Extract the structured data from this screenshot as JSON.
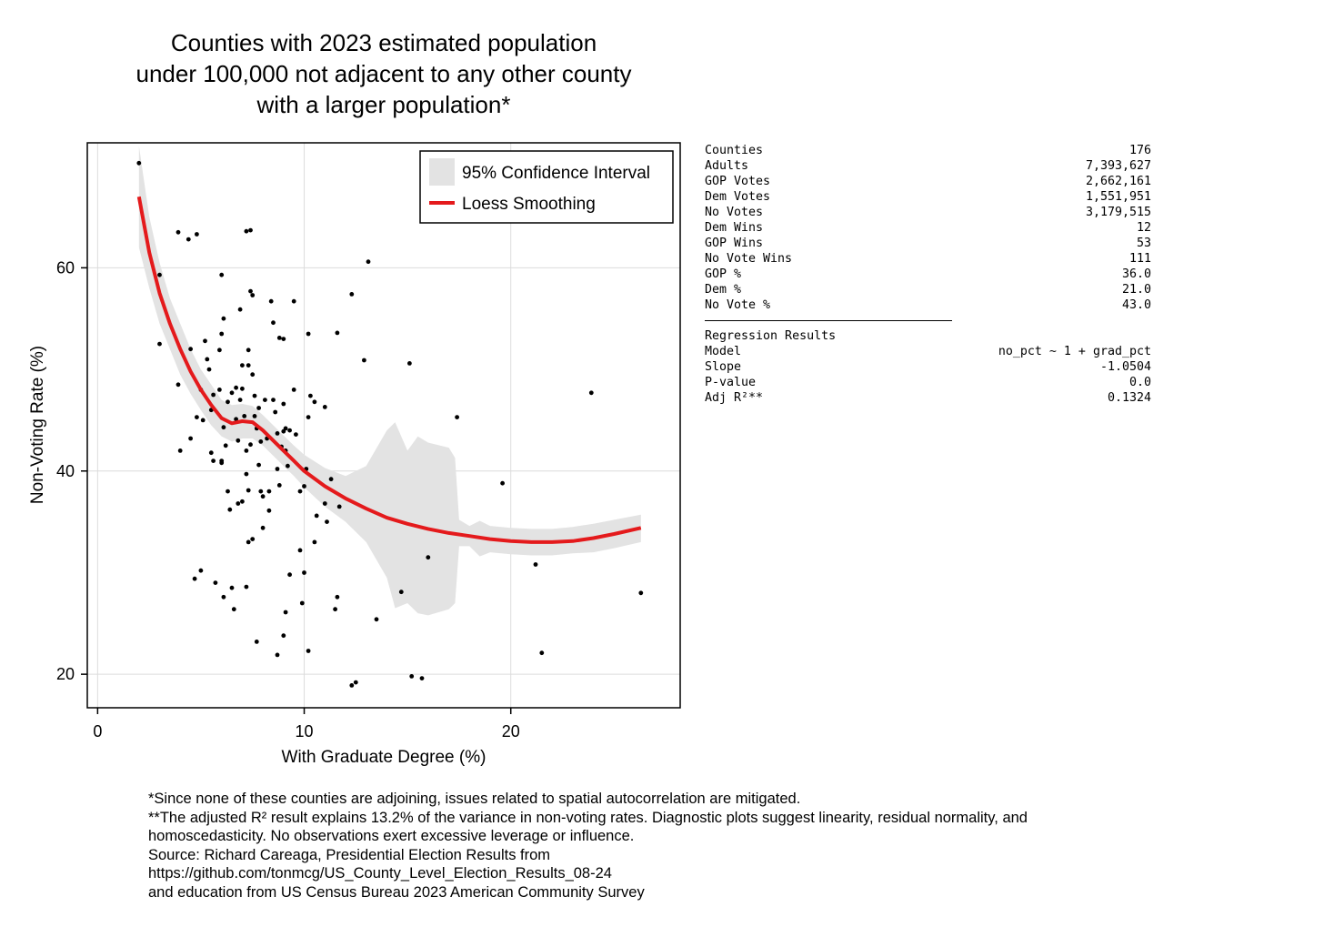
{
  "chart_data": {
    "type": "scatter",
    "title_lines": [
      "Counties with 2023 estimated population",
      "under 100,000 not adjacent to any other county",
      "with a larger population*"
    ],
    "xlabel": "With Graduate Degree (%)",
    "ylabel": "Non-Voting Rate (%)",
    "xlim": [
      -0.5,
      28.2
    ],
    "ylim": [
      16.7,
      72.3
    ],
    "xticks": [
      0,
      10,
      20
    ],
    "yticks": [
      20,
      40,
      60
    ],
    "grid": true,
    "legend_position": "top-right",
    "legend": [
      {
        "label": "95% Confidence Interval",
        "kind": "band",
        "color": "#e3e3e3"
      },
      {
        "label": "Loess Smoothing",
        "kind": "line",
        "color": "#e41a1c"
      }
    ],
    "points": [
      [
        2.0,
        70.3
      ],
      [
        3.0,
        59.3
      ],
      [
        3.0,
        52.5
      ],
      [
        3.9,
        48.5
      ],
      [
        4.0,
        42.0
      ],
      [
        3.9,
        63.5
      ],
      [
        4.4,
        62.8
      ],
      [
        4.8,
        63.3
      ],
      [
        4.5,
        52.0
      ],
      [
        4.5,
        43.2
      ],
      [
        4.8,
        45.3
      ],
      [
        4.7,
        29.4
      ],
      [
        5.0,
        30.2
      ],
      [
        5.1,
        45.0
      ],
      [
        5.2,
        52.8
      ],
      [
        5.3,
        51.0
      ],
      [
        5.4,
        50.0
      ],
      [
        5.5,
        46.0
      ],
      [
        5.5,
        41.8
      ],
      [
        5.6,
        47.5
      ],
      [
        5.6,
        41.0
      ],
      [
        5.7,
        29.0
      ],
      [
        5.9,
        48.0
      ],
      [
        6.0,
        59.3
      ],
      [
        6.1,
        55.0
      ],
      [
        6.0,
        53.5
      ],
      [
        6.1,
        44.3
      ],
      [
        6.2,
        42.5
      ],
      [
        6.0,
        40.8
      ],
      [
        6.3,
        38.0
      ],
      [
        6.4,
        36.2
      ],
      [
        6.5,
        28.5
      ],
      [
        6.6,
        26.4
      ],
      [
        6.1,
        27.6
      ],
      [
        6.3,
        46.8
      ],
      [
        6.5,
        47.7
      ],
      [
        6.7,
        48.2
      ],
      [
        6.7,
        45.1
      ],
      [
        6.8,
        43.0
      ],
      [
        6.9,
        55.9
      ],
      [
        7.0,
        50.4
      ],
      [
        7.0,
        48.1
      ],
      [
        7.1,
        45.4
      ],
      [
        7.2,
        42.0
      ],
      [
        7.2,
        39.7
      ],
      [
        7.3,
        38.1
      ],
      [
        7.3,
        33.0
      ],
      [
        7.2,
        28.6
      ],
      [
        7.2,
        63.6
      ],
      [
        7.4,
        63.7
      ],
      [
        7.4,
        57.7
      ],
      [
        7.5,
        57.3
      ],
      [
        7.3,
        51.9
      ],
      [
        7.3,
        50.4
      ],
      [
        7.5,
        49.5
      ],
      [
        7.6,
        47.4
      ],
      [
        7.6,
        45.4
      ],
      [
        7.7,
        44.2
      ],
      [
        7.8,
        40.6
      ],
      [
        7.9,
        38.0
      ],
      [
        8.0,
        37.5
      ],
      [
        7.7,
        23.2
      ],
      [
        8.0,
        34.4
      ],
      [
        8.1,
        47.0
      ],
      [
        8.2,
        43.2
      ],
      [
        8.3,
        38.0
      ],
      [
        8.4,
        56.7
      ],
      [
        8.5,
        54.6
      ],
      [
        8.5,
        47.0
      ],
      [
        8.6,
        45.8
      ],
      [
        8.7,
        43.7
      ],
      [
        8.7,
        40.2
      ],
      [
        8.8,
        38.6
      ],
      [
        8.8,
        53.1
      ],
      [
        9.0,
        53.0
      ],
      [
        9.0,
        46.6
      ],
      [
        9.1,
        44.2
      ],
      [
        9.1,
        42.0
      ],
      [
        9.2,
        40.5
      ],
      [
        9.1,
        26.1
      ],
      [
        9.0,
        23.8
      ],
      [
        8.7,
        21.9
      ],
      [
        9.3,
        29.8
      ],
      [
        9.3,
        44.0
      ],
      [
        9.5,
        56.7
      ],
      [
        9.5,
        48.0
      ],
      [
        9.6,
        43.6
      ],
      [
        9.8,
        38.0
      ],
      [
        9.8,
        32.2
      ],
      [
        9.9,
        27.0
      ],
      [
        10.0,
        30.0
      ],
      [
        10.0,
        38.5
      ],
      [
        10.1,
        40.2
      ],
      [
        10.2,
        22.3
      ],
      [
        10.2,
        53.5
      ],
      [
        10.2,
        45.3
      ],
      [
        10.3,
        47.4
      ],
      [
        10.5,
        33.0
      ],
      [
        10.5,
        46.8
      ],
      [
        10.6,
        35.6
      ],
      [
        11.0,
        46.3
      ],
      [
        11.0,
        36.8
      ],
      [
        11.1,
        35.0
      ],
      [
        11.3,
        39.2
      ],
      [
        11.5,
        26.4
      ],
      [
        11.6,
        27.6
      ],
      [
        11.7,
        36.5
      ],
      [
        11.6,
        53.6
      ],
      [
        12.3,
        57.4
      ],
      [
        12.3,
        18.9
      ],
      [
        12.5,
        19.2
      ],
      [
        12.9,
        50.9
      ],
      [
        13.1,
        60.6
      ],
      [
        13.5,
        25.4
      ],
      [
        14.7,
        28.1
      ],
      [
        15.1,
        50.6
      ],
      [
        15.2,
        19.8
      ],
      [
        15.7,
        19.6
      ],
      [
        16.0,
        31.5
      ],
      [
        17.4,
        45.3
      ],
      [
        19.6,
        38.8
      ],
      [
        21.2,
        30.8
      ],
      [
        21.5,
        22.1
      ],
      [
        23.9,
        47.7
      ],
      [
        26.3,
        28.0
      ],
      [
        6.0,
        41.0
      ],
      [
        5.0,
        48.0
      ],
      [
        7.4,
        42.6
      ],
      [
        7.8,
        46.2
      ],
      [
        8.3,
        36.1
      ],
      [
        6.9,
        47.0
      ],
      [
        8.9,
        42.4
      ],
      [
        7.5,
        33.3
      ],
      [
        7.0,
        37.0
      ],
      [
        6.8,
        36.8
      ],
      [
        7.9,
        42.9
      ],
      [
        5.9,
        51.9
      ],
      [
        9.0,
        43.9
      ]
    ],
    "loess": [
      [
        2.0,
        67.0
      ],
      [
        2.5,
        61.5
      ],
      [
        3.0,
        57.5
      ],
      [
        3.5,
        54.5
      ],
      [
        4.0,
        52.0
      ],
      [
        4.5,
        49.8
      ],
      [
        5.0,
        48.0
      ],
      [
        5.5,
        46.5
      ],
      [
        6.0,
        45.2
      ],
      [
        6.5,
        44.7
      ],
      [
        7.0,
        44.9
      ],
      [
        7.5,
        44.8
      ],
      [
        8.0,
        44.0
      ],
      [
        8.5,
        43.0
      ],
      [
        9.0,
        42.0
      ],
      [
        9.5,
        41.0
      ],
      [
        10.0,
        40.0
      ],
      [
        11.0,
        38.5
      ],
      [
        12.0,
        37.3
      ],
      [
        13.0,
        36.3
      ],
      [
        14.0,
        35.4
      ],
      [
        15.0,
        34.8
      ],
      [
        16.0,
        34.3
      ],
      [
        17.0,
        33.9
      ],
      [
        18.0,
        33.6
      ],
      [
        19.0,
        33.3
      ],
      [
        20.0,
        33.1
      ],
      [
        21.0,
        33.0
      ],
      [
        22.0,
        33.0
      ],
      [
        23.0,
        33.1
      ],
      [
        24.0,
        33.4
      ],
      [
        25.0,
        33.8
      ],
      [
        26.3,
        34.4
      ]
    ],
    "ci_upper": [
      [
        2.0,
        72.0
      ],
      [
        2.5,
        65.0
      ],
      [
        3.0,
        60.5
      ],
      [
        3.5,
        57.0
      ],
      [
        4.0,
        54.5
      ],
      [
        4.5,
        52.0
      ],
      [
        5.0,
        50.0
      ],
      [
        5.5,
        48.5
      ],
      [
        6.0,
        47.0
      ],
      [
        6.5,
        46.5
      ],
      [
        7.0,
        46.6
      ],
      [
        7.5,
        46.4
      ],
      [
        8.0,
        45.5
      ],
      [
        8.5,
        44.5
      ],
      [
        9.0,
        43.5
      ],
      [
        9.5,
        42.5
      ],
      [
        10.0,
        41.6
      ],
      [
        11.0,
        40.3
      ],
      [
        12.0,
        39.5
      ],
      [
        13.0,
        40.5
      ],
      [
        14.0,
        44.0
      ],
      [
        14.4,
        44.8
      ],
      [
        15.0,
        42.0
      ],
      [
        15.5,
        43.4
      ],
      [
        16.0,
        42.8
      ],
      [
        17.0,
        42.3
      ],
      [
        17.3,
        41.3
      ],
      [
        17.5,
        35.2
      ],
      [
        18.0,
        34.6
      ],
      [
        18.5,
        35.1
      ],
      [
        19.0,
        34.6
      ],
      [
        20.0,
        34.4
      ],
      [
        21.0,
        34.3
      ],
      [
        22.0,
        34.3
      ],
      [
        23.0,
        34.5
      ],
      [
        24.0,
        34.8
      ],
      [
        25.0,
        35.2
      ],
      [
        26.3,
        35.7
      ]
    ],
    "ci_lower": [
      [
        2.0,
        62.0
      ],
      [
        2.5,
        58.0
      ],
      [
        3.0,
        54.5
      ],
      [
        3.5,
        52.0
      ],
      [
        4.0,
        49.5
      ],
      [
        4.5,
        47.6
      ],
      [
        5.0,
        46.0
      ],
      [
        5.5,
        44.5
      ],
      [
        6.0,
        43.4
      ],
      [
        6.5,
        42.9
      ],
      [
        7.0,
        43.2
      ],
      [
        7.5,
        43.2
      ],
      [
        8.0,
        42.5
      ],
      [
        8.5,
        41.5
      ],
      [
        9.0,
        40.5
      ],
      [
        9.5,
        39.5
      ],
      [
        10.0,
        38.4
      ],
      [
        11.0,
        36.5
      ],
      [
        12.0,
        35.0
      ],
      [
        13.0,
        33.0
      ],
      [
        14.0,
        29.5
      ],
      [
        14.4,
        26.5
      ],
      [
        15.0,
        27.0
      ],
      [
        15.5,
        26.0
      ],
      [
        16.0,
        25.8
      ],
      [
        17.0,
        26.4
      ],
      [
        17.3,
        27.0
      ],
      [
        17.5,
        32.6
      ],
      [
        18.0,
        32.6
      ],
      [
        18.5,
        31.6
      ],
      [
        19.0,
        32.0
      ],
      [
        20.0,
        31.8
      ],
      [
        21.0,
        31.7
      ],
      [
        22.0,
        31.7
      ],
      [
        23.0,
        31.9
      ],
      [
        24.0,
        32.0
      ],
      [
        25.0,
        32.4
      ],
      [
        26.3,
        33.0
      ]
    ]
  },
  "stats": [
    {
      "label": "Counties",
      "value": "176"
    },
    {
      "label": "Adults",
      "value": "7,393,627"
    },
    {
      "label": "GOP Votes",
      "value": "2,662,161"
    },
    {
      "label": "Dem Votes",
      "value": "1,551,951"
    },
    {
      "label": "No Votes",
      "value": "3,179,515"
    },
    {
      "label": "Dem Wins",
      "value": "12"
    },
    {
      "label": "GOP Wins",
      "value": "53"
    },
    {
      "label": "No Vote Wins",
      "value": "111"
    },
    {
      "label": "GOP %",
      "value": "36.0"
    },
    {
      "label": "Dem %",
      "value": "21.0"
    },
    {
      "label": "No Vote %",
      "value": "43.0"
    }
  ],
  "regression": {
    "heading": "Regression Results",
    "rows": [
      {
        "label": "Model",
        "value": "no_pct ~ 1 + grad_pct"
      },
      {
        "label": "Slope",
        "value": "-1.0504"
      },
      {
        "label": "P-value",
        "value": "0.0"
      },
      {
        "label": "Adj R²**",
        "value": "0.1324"
      }
    ]
  },
  "footnotes": [
    "*Since none of these counties are adjoining, issues related to spatial autocorrelation are mitigated.",
    "**The adjusted R² result explains 13.2% of the variance in non-voting rates.  Diagnostic plots suggest linearity, residual normality, and",
    "homoscedasticity. No observations exert excessive leverage or influence.",
    "Source: Richard Careaga, Presidential Election Results from",
    "https://github.com/tonmcg/US_County_Level_Election_Results_08-24",
    "and education from US Census Bureau 2023 American Community Survey"
  ]
}
